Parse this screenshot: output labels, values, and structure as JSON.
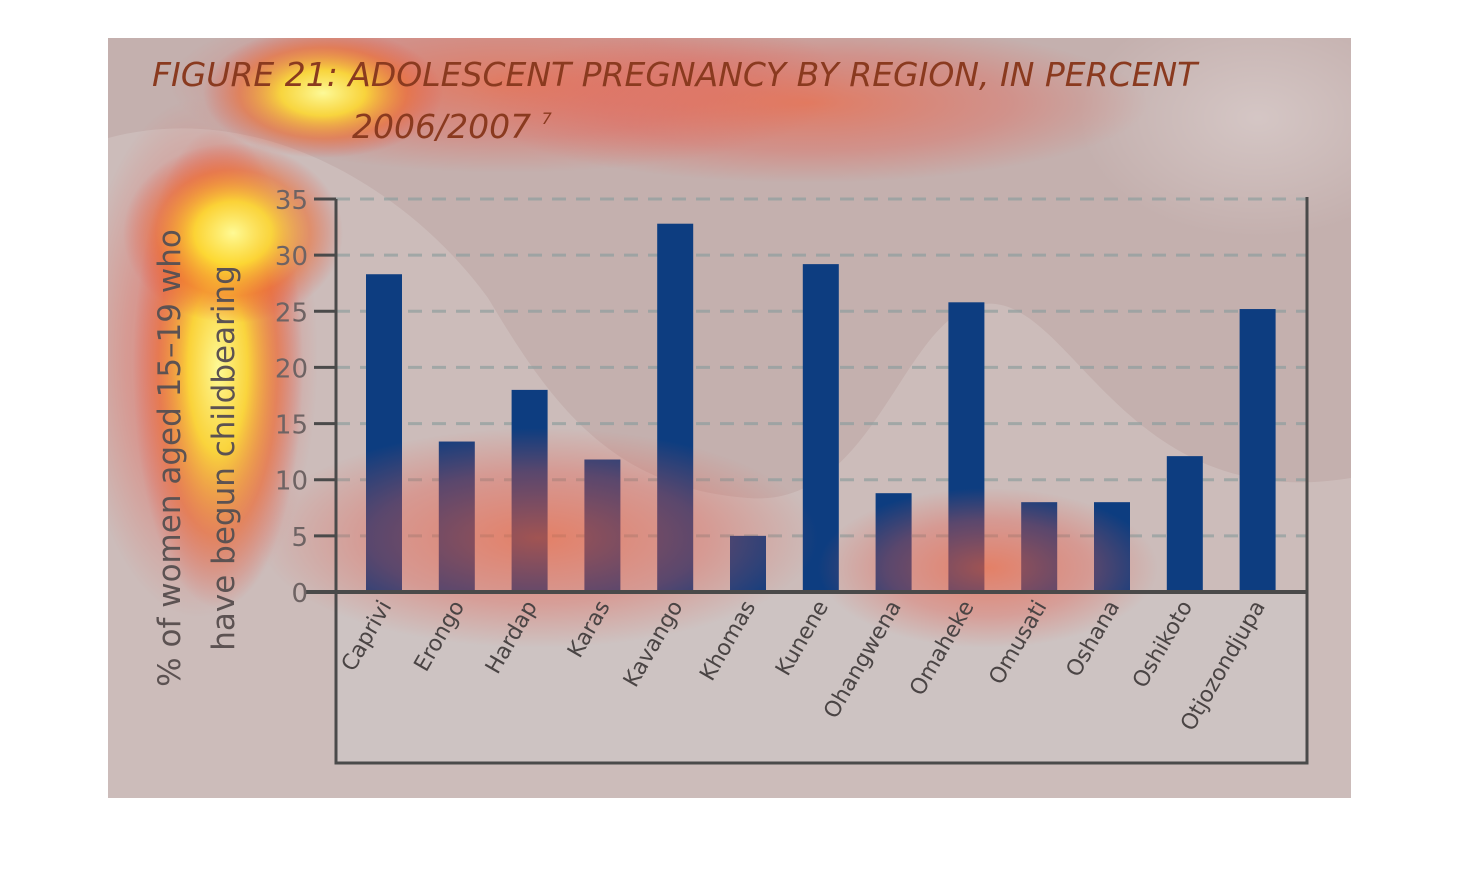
{
  "colors": {
    "background": "#c4b0ae",
    "bar": "#0d3d80",
    "title": "#8a3a1f",
    "axis": "#4a4a4a",
    "grid": "#8f9e9e",
    "label_panel": "#cdc6c4"
  },
  "chart_data": {
    "type": "bar",
    "title": "FIGURE 21: ADOLESCENT PREGNANCY BY REGION, IN PERCENT",
    "subtitle": "2006/2007",
    "subtitle_superscript": "7",
    "ylabel_line1": "% of women aged 15–19 who",
    "ylabel_line2": "have begun childbearing",
    "xlabel": "",
    "ylim": [
      0,
      35
    ],
    "yticks": [
      "0",
      "5",
      "10",
      "15",
      "20",
      "25",
      "30",
      "35"
    ],
    "grid": "dashed horizontal",
    "categories": [
      "Caprivi",
      "Erongo",
      "Hardap",
      "Karas",
      "Kavango",
      "Khomas",
      "Kunene",
      "Ohangwena",
      "Omaheke",
      "Omusati",
      "Oshana",
      "Oshikoto",
      "Otjozondjupa"
    ],
    "values": [
      28.3,
      13.4,
      18.0,
      11.8,
      32.8,
      5.0,
      29.2,
      8.8,
      25.8,
      8.0,
      8.0,
      12.1,
      25.2
    ]
  }
}
